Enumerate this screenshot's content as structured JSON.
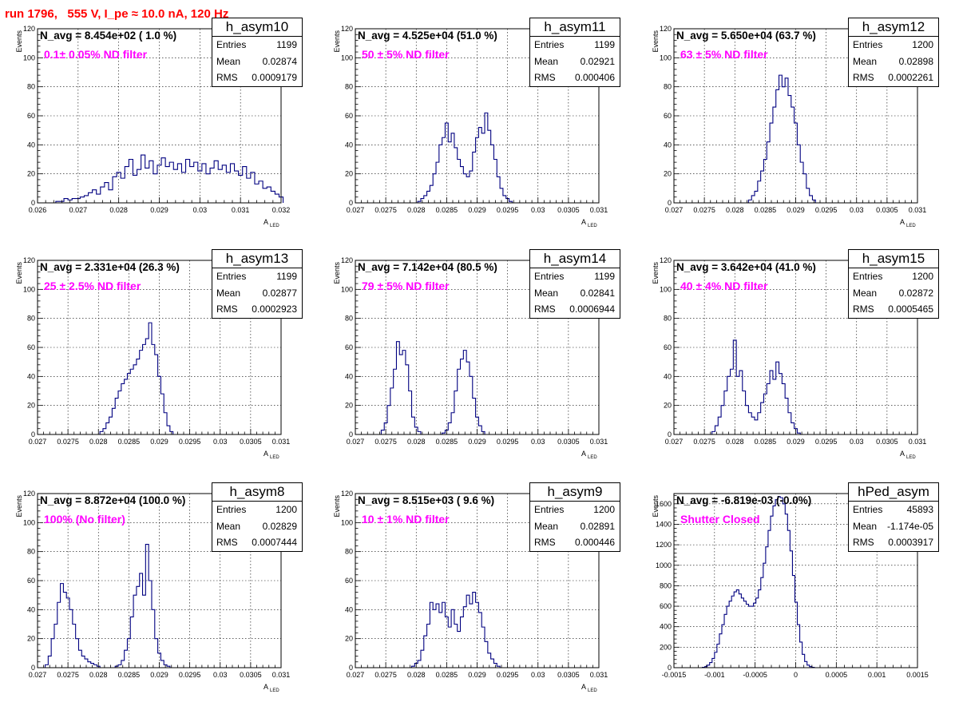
{
  "page": {
    "title": "run 1796,   555 V, I_pe ≈ 10.0 nA, 120 Hz"
  },
  "chart_data": [
    {
      "type": "histogram",
      "name": "h_asym10",
      "ylabel": "Events",
      "xlabel": "A",
      "xlabel_sub": "LED",
      "navg": "N_avg = 8.454e+02 ( 1.0 %)",
      "note": "0.1± 0.05% ND filter",
      "stats": {
        "Entries": "1199",
        "Mean": "0.02874",
        "RMS": "0.0009179"
      },
      "xlim": [
        0.026,
        0.032
      ],
      "ylim": [
        0,
        120
      ],
      "xticks": [
        "0.026",
        "0.027",
        "0.028",
        "0.029",
        "0.03",
        "0.031",
        "0.032"
      ],
      "yticks": [
        "0",
        "20",
        "40",
        "60",
        "80",
        "100",
        "120"
      ],
      "bins": [
        0.02605,
        0.0001,
        [
          0,
          0,
          0,
          0,
          1,
          1,
          3,
          2,
          3,
          3,
          4,
          5,
          7,
          9,
          6,
          11,
          14,
          9,
          18,
          21,
          17,
          25,
          30,
          19,
          23,
          33,
          24,
          29,
          20,
          26,
          31,
          25,
          28,
          23,
          27,
          21,
          30,
          25,
          28,
          22,
          27,
          20,
          24,
          29,
          23,
          26,
          21,
          27,
          22,
          19,
          25,
          17,
          21,
          13,
          15,
          10,
          11,
          8,
          6,
          4
        ]
      ]
    },
    {
      "type": "histogram",
      "name": "h_asym11",
      "ylabel": "Events",
      "xlabel": "A",
      "xlabel_sub": "LED",
      "navg": "N_avg = 4.525e+04 (51.0 %)",
      "note": "50 ± 5% ND filter",
      "stats": {
        "Entries": "1199",
        "Mean": "0.02921",
        "RMS": "0.000406"
      },
      "xlim": [
        0.027,
        0.031
      ],
      "ylim": [
        0,
        120
      ],
      "xticks": [
        "0.027",
        "0.0275",
        "0.028",
        "0.0285",
        "0.029",
        "0.0295",
        "0.03",
        "0.0305",
        "0.031"
      ],
      "yticks": [
        "0",
        "20",
        "40",
        "60",
        "80",
        "100",
        "120"
      ],
      "bins": [
        0.028025,
        5e-05,
        [
          1,
          3,
          5,
          8,
          12,
          20,
          28,
          40,
          45,
          55,
          42,
          48,
          38,
          30,
          25,
          20,
          18,
          22,
          35,
          45,
          52,
          48,
          62,
          50,
          40,
          30,
          18,
          10,
          5,
          3,
          1
        ]
      ]
    },
    {
      "type": "histogram",
      "name": "h_asym12",
      "ylabel": "Events",
      "xlabel": "A",
      "xlabel_sub": "LED",
      "navg": "N_avg = 5.650e+04 (63.7 %)",
      "note": "63 ± 5% ND filter",
      "stats": {
        "Entries": "1200",
        "Mean": "0.02898",
        "RMS": "0.0002261"
      },
      "xlim": [
        0.027,
        0.031
      ],
      "ylim": [
        0,
        120
      ],
      "xticks": [
        "0.027",
        "0.0275",
        "0.028",
        "0.0285",
        "0.029",
        "0.0295",
        "0.03",
        "0.0305",
        "0.031"
      ],
      "yticks": [
        "0",
        "20",
        "40",
        "60",
        "80",
        "100",
        "120"
      ],
      "bins": [
        0.028225,
        5e-05,
        [
          2,
          5,
          8,
          15,
          22,
          30,
          42,
          55,
          66,
          78,
          88,
          80,
          86,
          74,
          66,
          55,
          40,
          28,
          20,
          10,
          5,
          2
        ]
      ]
    },
    {
      "type": "histogram",
      "name": "h_asym13",
      "ylabel": "Events",
      "xlabel": "A",
      "xlabel_sub": "LED",
      "navg": "N_avg = 2.331e+04 (26.3 %)",
      "note": "25 ± 2.5% ND filter",
      "stats": {
        "Entries": "1199",
        "Mean": "0.02877",
        "RMS": "0.0002923"
      },
      "xlim": [
        0.027,
        0.031
      ],
      "ylim": [
        0,
        120
      ],
      "xticks": [
        "0.027",
        "0.0275",
        "0.028",
        "0.0285",
        "0.029",
        "0.0295",
        "0.03",
        "0.0305",
        "0.031"
      ],
      "yticks": [
        "0",
        "20",
        "40",
        "60",
        "80",
        "100",
        "120"
      ],
      "bins": [
        0.028025,
        5e-05,
        [
          2,
          4,
          8,
          12,
          18,
          25,
          30,
          35,
          38,
          42,
          45,
          48,
          52,
          58,
          62,
          66,
          77,
          62,
          55,
          40,
          28,
          15,
          6,
          2
        ]
      ]
    },
    {
      "type": "histogram",
      "name": "h_asym14",
      "ylabel": "Events",
      "xlabel": "A",
      "xlabel_sub": "LED",
      "navg": "N_avg = 7.142e+04 (80.5 %)",
      "note": "79 ± 5% ND filter",
      "stats": {
        "Entries": "1199",
        "Mean": "0.02841",
        "RMS": "0.0006944"
      },
      "xlim": [
        0.027,
        0.031
      ],
      "ylim": [
        0,
        120
      ],
      "xticks": [
        "0.027",
        "0.0275",
        "0.028",
        "0.0285",
        "0.029",
        "0.0295",
        "0.03",
        "0.0305",
        "0.031"
      ],
      "yticks": [
        "0",
        "20",
        "40",
        "60",
        "80",
        "100",
        "120"
      ],
      "bins": [
        0.027425,
        5e-05,
        [
          3,
          8,
          20,
          32,
          45,
          64,
          55,
          58,
          48,
          30,
          12,
          5,
          2,
          0,
          0,
          0,
          0,
          0,
          0,
          0,
          1,
          3,
          8,
          15,
          30,
          45,
          52,
          58,
          50,
          40,
          25,
          12,
          6,
          2
        ]
      ]
    },
    {
      "type": "histogram",
      "name": "h_asym15",
      "ylabel": "Events",
      "xlabel": "A",
      "xlabel_sub": "LED",
      "navg": "N_avg = 3.642e+04 (41.0 %)",
      "note": "40 ± 4% ND filter",
      "stats": {
        "Entries": "1200",
        "Mean": "0.02872",
        "RMS": "0.0005465"
      },
      "xlim": [
        0.027,
        0.031
      ],
      "ylim": [
        0,
        120
      ],
      "xticks": [
        "0.027",
        "0.0275",
        "0.028",
        "0.0285",
        "0.029",
        "0.0295",
        "0.03",
        "0.0305",
        "0.031"
      ],
      "yticks": [
        "0",
        "20",
        "40",
        "60",
        "80",
        "100",
        "120"
      ],
      "bins": [
        0.027625,
        5e-05,
        [
          2,
          6,
          12,
          20,
          30,
          40,
          45,
          65,
          40,
          44,
          30,
          20,
          15,
          12,
          10,
          15,
          22,
          28,
          35,
          44,
          38,
          50,
          42,
          35,
          25,
          15,
          8,
          4,
          1
        ]
      ]
    },
    {
      "type": "histogram",
      "name": "h_asym8",
      "ylabel": "Events",
      "xlabel": "A",
      "xlabel_sub": "LED",
      "navg": "N_avg = 8.872e+04 (100.0 %)",
      "note": "100% (No filter)",
      "stats": {
        "Entries": "1200",
        "Mean": "0.02829",
        "RMS": "0.0007444"
      },
      "xlim": [
        0.027,
        0.031
      ],
      "ylim": [
        0,
        120
      ],
      "xticks": [
        "0.027",
        "0.0275",
        "0.028",
        "0.0285",
        "0.029",
        "0.0295",
        "0.03",
        "0.0305",
        "0.031"
      ],
      "yticks": [
        "0",
        "20",
        "40",
        "60",
        "80",
        "100",
        "120"
      ],
      "bins": [
        0.027125,
        5e-05,
        [
          2,
          8,
          20,
          30,
          45,
          58,
          52,
          48,
          40,
          30,
          20,
          12,
          8,
          6,
          4,
          3,
          2,
          1,
          0,
          0,
          0,
          0,
          0,
          1,
          2,
          5,
          12,
          20,
          35,
          50,
          56,
          65,
          50,
          85,
          60,
          40,
          20,
          10,
          5,
          2,
          1
        ]
      ]
    },
    {
      "type": "histogram",
      "name": "h_asym9",
      "ylabel": "Events",
      "xlabel": "A",
      "xlabel_sub": "LED",
      "navg": "N_avg = 8.515e+03 ( 9.6 %)",
      "note": "10 ± 1% ND filter",
      "stats": {
        "Entries": "1200",
        "Mean": "0.02891",
        "RMS": "0.000446"
      },
      "xlim": [
        0.027,
        0.031
      ],
      "ylim": [
        0,
        120
      ],
      "xticks": [
        "0.027",
        "0.0275",
        "0.028",
        "0.0285",
        "0.029",
        "0.0295",
        "0.03",
        "0.0305",
        "0.031"
      ],
      "yticks": [
        "0",
        "20",
        "40",
        "60",
        "80",
        "100",
        "120"
      ],
      "bins": [
        0.027925,
        5e-05,
        [
          1,
          3,
          5,
          12,
          22,
          30,
          45,
          40,
          44,
          38,
          45,
          35,
          28,
          40,
          30,
          25,
          35,
          42,
          50,
          44,
          52,
          45,
          38,
          28,
          18,
          10,
          6,
          3,
          1
        ]
      ]
    },
    {
      "type": "histogram",
      "name": "hPed_asym",
      "ylabel": "Events",
      "xlabel": "",
      "xlabel_sub": "",
      "navg": "N_avg = -6.819e-03 (-0.0%)",
      "note": "Shutter Closed",
      "stats": {
        "Entries": "45893",
        "Mean": "-1.174e-05",
        "RMS": "0.0003917"
      },
      "xlim": [
        -0.0015,
        0.0015
      ],
      "ylim": [
        0,
        1700
      ],
      "xticks": [
        "-0.0015",
        "-0.001",
        "-0.0005",
        "0",
        "0.0005",
        "0.001",
        "0.0015"
      ],
      "yticks": [
        "0",
        "200",
        "400",
        "600",
        "800",
        "1000",
        "1200",
        "1400",
        "1600"
      ],
      "bins": [
        -0.00115,
        3e-05,
        [
          4,
          10,
          25,
          50,
          90,
          150,
          230,
          330,
          420,
          520,
          600,
          650,
          700,
          740,
          760,
          720,
          680,
          650,
          620,
          600,
          600,
          630,
          680,
          760,
          880,
          1020,
          1180,
          1340,
          1480,
          1580,
          1640,
          1670,
          1660,
          1600,
          1500,
          1340,
          1140,
          900,
          640,
          420,
          250,
          130,
          60,
          25,
          10,
          4
        ]
      ]
    }
  ]
}
